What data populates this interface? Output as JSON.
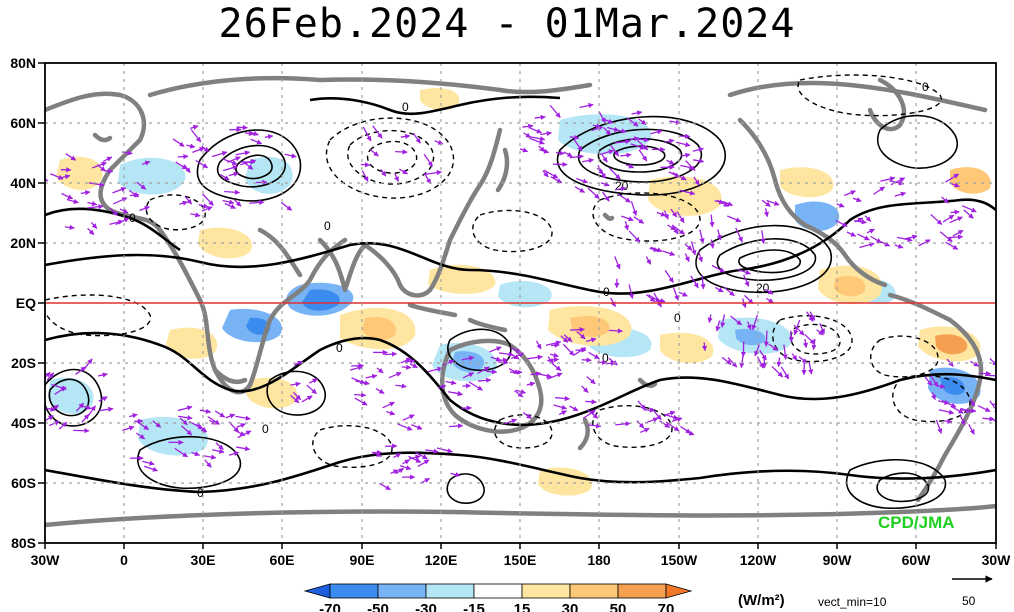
{
  "title": "26Feb.2024 - 01Mar.2024",
  "lat_labels": [
    "80N",
    "60N",
    "40N",
    "20N",
    "EQ",
    "20S",
    "40S",
    "60S",
    "80S"
  ],
  "lon_labels": [
    "30W",
    "0",
    "30E",
    "60E",
    "90E",
    "120E",
    "150E",
    "180",
    "150W",
    "120W",
    "90W",
    "60W",
    "30W"
  ],
  "colorbar": {
    "ticks": [
      "-70",
      "-50",
      "-30",
      "-15",
      "15",
      "30",
      "50",
      "70"
    ],
    "colors": [
      "#1e5fe0",
      "#3c8cf0",
      "#78b4f5",
      "#b4e6f5",
      "#ffffff",
      "#ffe6a0",
      "#ffc878",
      "#f5a050",
      "#f07828"
    ],
    "units": "(W/m²)"
  },
  "vector_note": "vect_min=10",
  "ref_vector_value": "50",
  "credit": "CPD/JMA",
  "contour_labels": [
    "0",
    "0",
    "0",
    "0",
    "0",
    "0",
    "0",
    "0",
    "0",
    "0",
    "-20",
    "20",
    "20"
  ],
  "colors": {
    "vectors": "#a020e0",
    "equator": "#e03030",
    "land": "#808080",
    "credit": "#20d020"
  }
}
